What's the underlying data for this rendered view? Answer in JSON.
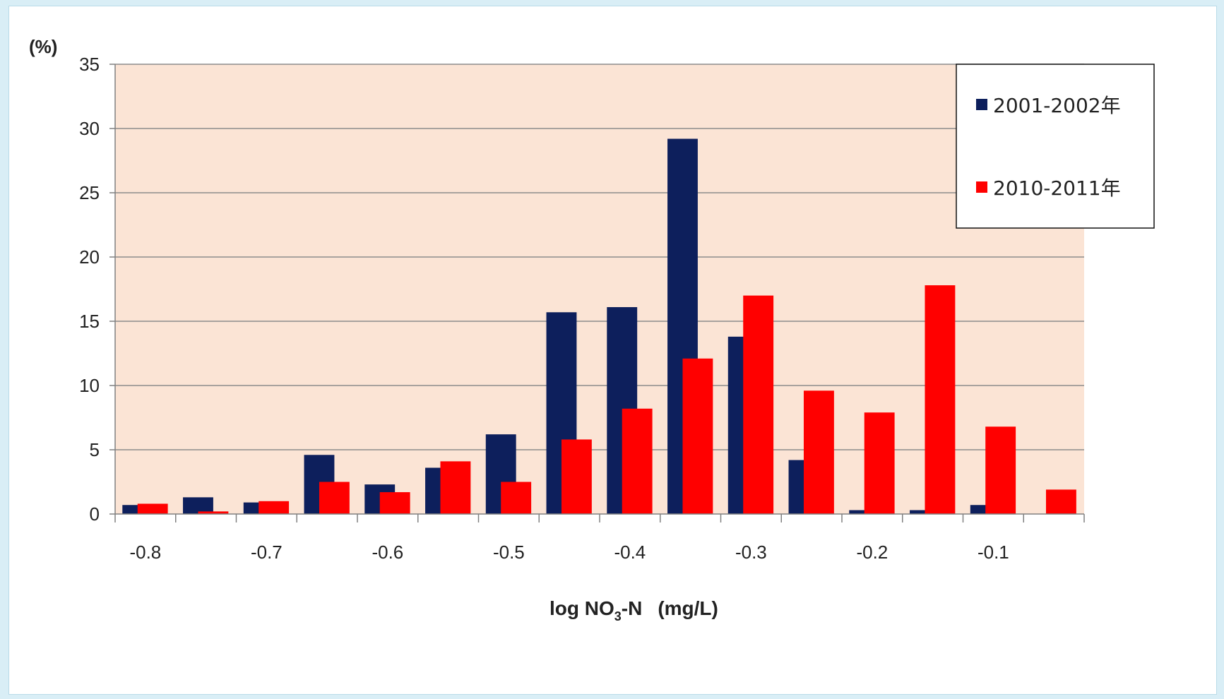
{
  "chart_data": {
    "type": "bar",
    "y_unit": "(%)",
    "xlabel": {
      "prefix": "log NO",
      "subscript": "3",
      "suffix": "-N",
      "unit": "(mg/L)"
    },
    "ylim": [
      0,
      35
    ],
    "y_ticks": [
      0,
      5,
      10,
      15,
      20,
      25,
      30,
      35
    ],
    "x_tick_labels": [
      "-0.8",
      "-0.7",
      "-0.6",
      "-0.5",
      "-0.4",
      "-0.3",
      "-0.2",
      "-0.1"
    ],
    "grid": true,
    "plot_background": "#fbe4d5",
    "legend_placement": "top-right",
    "bins": 16,
    "series": [
      {
        "name": "2001-2002年",
        "color": "#0d1f5c",
        "values": [
          0.7,
          1.3,
          0.9,
          4.6,
          2.3,
          3.6,
          6.2,
          15.7,
          16.1,
          29.2,
          13.8,
          4.2,
          0.3,
          0.3,
          0.7,
          0
        ]
      },
      {
        "name": "2010-2011年",
        "color": "#ff0000",
        "values": [
          0.8,
          0.2,
          1.0,
          2.5,
          1.7,
          4.1,
          2.5,
          5.8,
          8.2,
          12.1,
          17.0,
          9.6,
          7.9,
          17.8,
          6.8,
          1.9
        ]
      }
    ]
  }
}
